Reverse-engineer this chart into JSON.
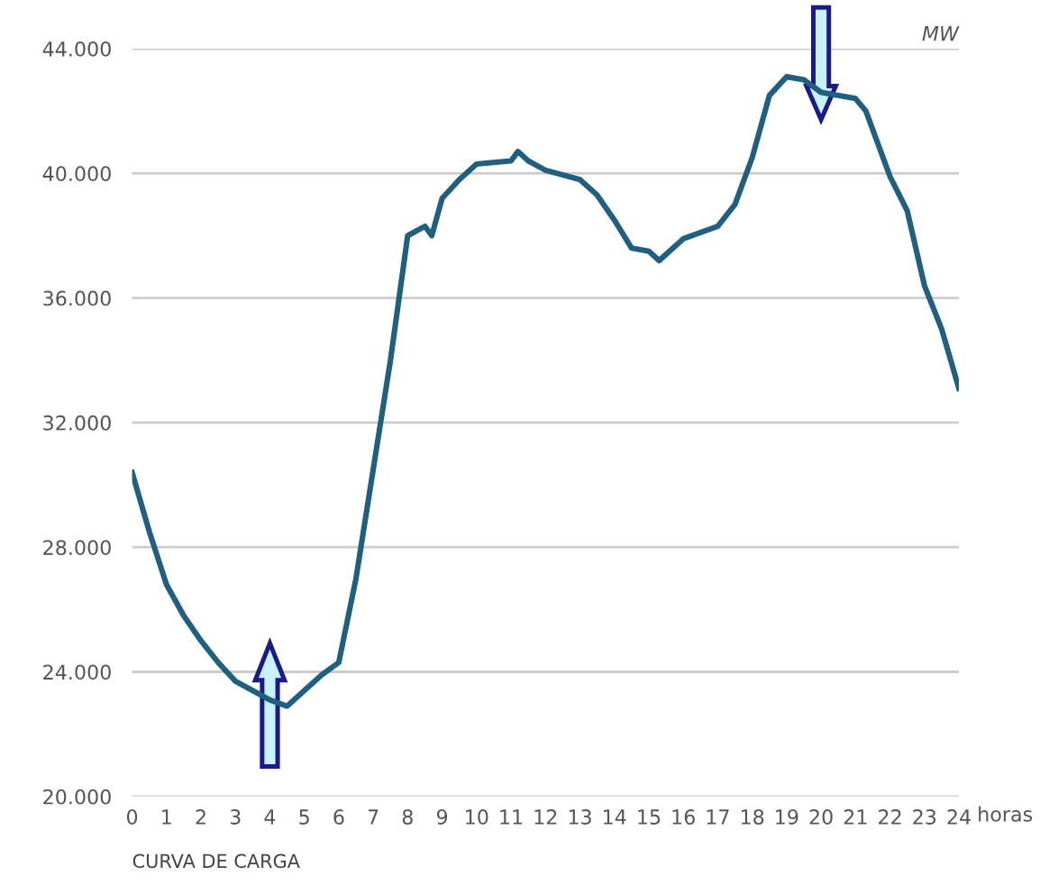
{
  "chart_data": {
    "type": "line",
    "xlabel": "horas",
    "ylabel": "MW",
    "annotations": [
      "CURVA DE CARGA"
    ],
    "x": [
      0,
      0.5,
      1,
      1.5,
      2,
      2.5,
      3,
      3.5,
      4,
      4.5,
      5,
      5.5,
      6,
      6.5,
      7,
      7.5,
      8,
      8.5,
      8.7,
      9,
      9.5,
      10,
      11,
      11.2,
      11.5,
      12,
      13,
      13.5,
      14,
      14.5,
      15,
      15.3,
      16,
      17,
      17.5,
      18,
      18.5,
      19,
      19.5,
      20,
      21,
      21.3,
      22,
      22.5,
      23,
      23.5,
      24
    ],
    "series": [
      {
        "color": "#1f5f7f",
        "values": [
          30400,
          28500,
          26800,
          25800,
          25000,
          24300,
          23700,
          23400,
          23100,
          22900,
          23400,
          23900,
          24300,
          27000,
          30500,
          34000,
          38000,
          38300,
          38000,
          39200,
          39800,
          40300,
          40400,
          40700,
          40400,
          40100,
          39800,
          39300,
          38500,
          37600,
          37500,
          37200,
          37900,
          38300,
          39000,
          40500,
          42500,
          43100,
          43000,
          42600,
          42400,
          42000,
          39900,
          38800,
          36400,
          35000,
          33100
        ]
      }
    ],
    "xlim": [
      0,
      24
    ],
    "ylim": [
      20000,
      44000
    ],
    "xticks": [
      0,
      1,
      2,
      3,
      4,
      5,
      6,
      7,
      8,
      9,
      10,
      11,
      12,
      13,
      14,
      15,
      16,
      17,
      18,
      19,
      20,
      21,
      22,
      23,
      24
    ],
    "yticks": [
      {
        "value": 20000,
        "label": "20.000"
      },
      {
        "value": 24000,
        "label": "24.000"
      },
      {
        "value": 28000,
        "label": "28.000"
      },
      {
        "value": 32000,
        "label": "32.000"
      },
      {
        "value": 36000,
        "label": "36.000"
      },
      {
        "value": 40000,
        "label": "40.000"
      },
      {
        "value": 44000,
        "label": "44.000"
      }
    ],
    "grid": "y",
    "marker": "none",
    "line_style": "solid"
  }
}
